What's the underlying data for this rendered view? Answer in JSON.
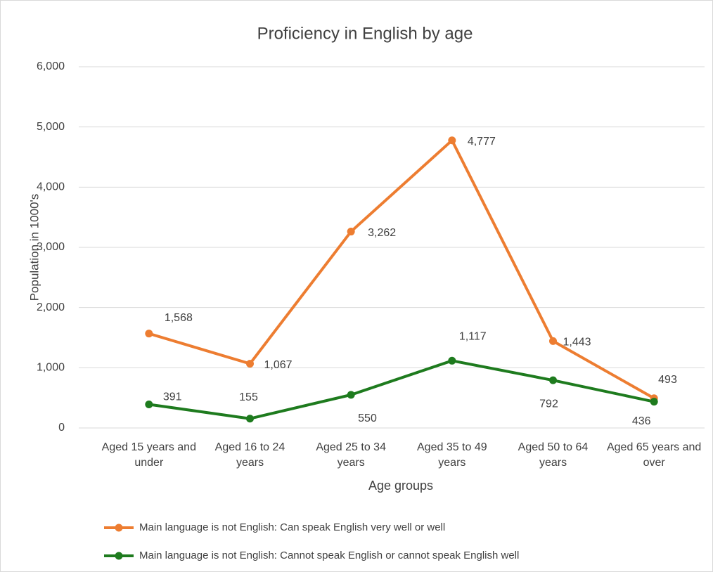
{
  "chart_data": {
    "type": "line",
    "title": "Proficiency in English by age",
    "x_label": "Age groups",
    "y_label": "Population in 1000's",
    "categories": [
      "Aged 15 years and under",
      "Aged 16 to 24 years",
      "Aged 25 to 34 years",
      "Aged 35 to 49 years",
      "Aged 50 to 64 years",
      "Aged 65 years and over"
    ],
    "series": [
      {
        "name": "Main language is not English: Can speak English very well or well",
        "color": "#ed7d31",
        "values": [
          1568,
          1067,
          3262,
          4777,
          1443,
          493
        ],
        "value_labels": [
          "1,568",
          "1,067",
          "3,262",
          "4,777",
          "1,443",
          "493"
        ]
      },
      {
        "name": "Main language is not English: Cannot speak English or cannot speak English well",
        "color": "#1e7b1e",
        "values": [
          391,
          155,
          550,
          1117,
          792,
          436
        ],
        "value_labels": [
          "391",
          "155",
          "550",
          "1,117",
          "792",
          "436"
        ]
      }
    ],
    "ylim": [
      0,
      6000
    ],
    "yticks": [
      0,
      {
        "value": 1000,
        "label": "1,000"
      },
      {
        "value": 2000,
        "label": "2,000"
      },
      {
        "value": 3000,
        "label": "3,000"
      },
      {
        "value": 4000,
        "label": "4,000"
      },
      {
        "value": 5000,
        "label": "5,000"
      },
      {
        "value": 6000,
        "label": "6,000"
      }
    ],
    "grid": true,
    "legend": "bottom"
  }
}
